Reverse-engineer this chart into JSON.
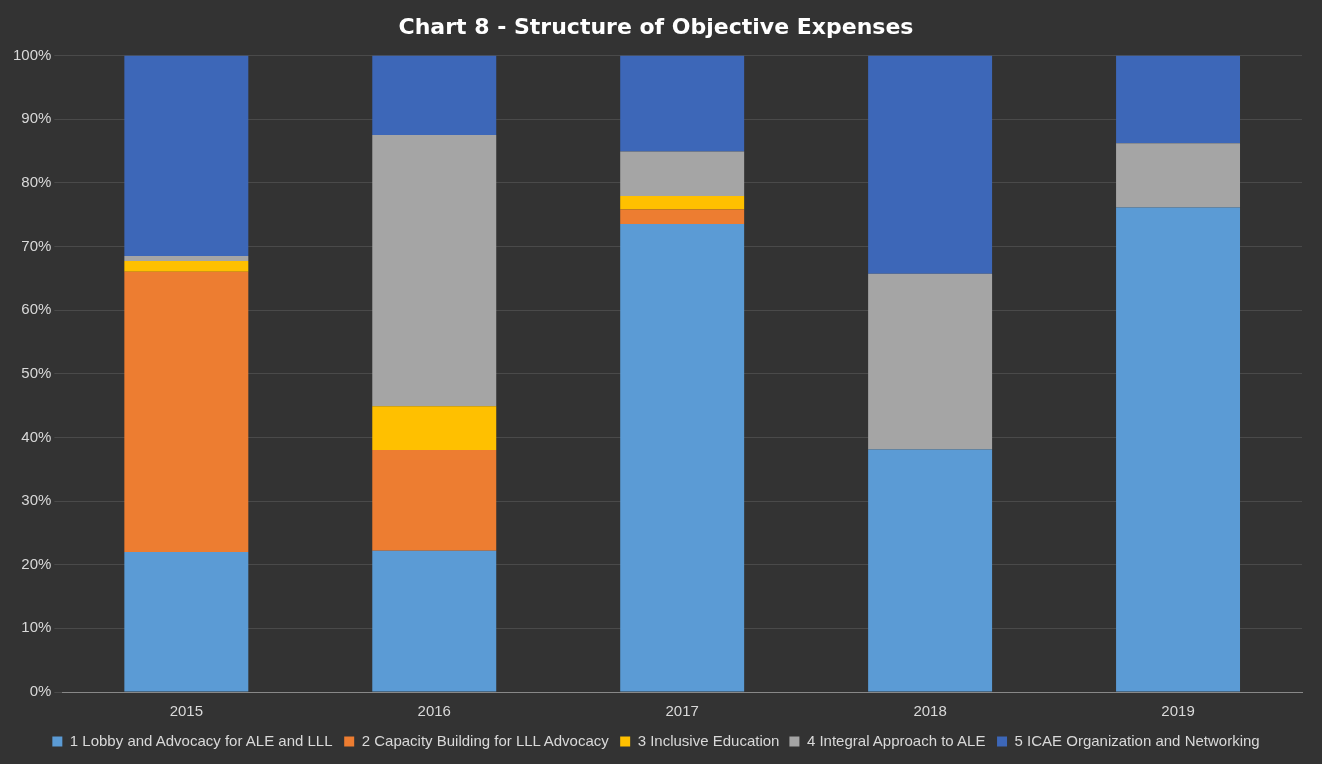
{
  "chart_data": {
    "type": "bar",
    "stacked": true,
    "title": "Chart 8 - Structure of Objective Expenses",
    "categories": [
      "2015",
      "2016",
      "2017",
      "2018",
      "2019"
    ],
    "series": [
      {
        "name": "1 Lobby and Advocacy for ALE and LLL",
        "color": "#5b9bd5",
        "values": [
          22,
          22.2,
          73.5,
          38.1,
          76.1
        ]
      },
      {
        "name": "2 Capacity Building for LLL Advocacy",
        "color": "#ed7d31",
        "values": [
          44,
          15.8,
          2.3,
          0,
          0
        ]
      },
      {
        "name": "3 Inclusive Education",
        "color": "#ffc000",
        "values": [
          1.7,
          6.9,
          2.1,
          0,
          0
        ]
      },
      {
        "name": "4 Integral Approach to ALE",
        "color": "#a5a5a5",
        "values": [
          0.8,
          42.6,
          7,
          27.6,
          10.1
        ]
      },
      {
        "name": "5 ICAE Organization and Networking",
        "color": "#3d67b8",
        "values": [
          31.5,
          12.5,
          15.1,
          34.3,
          13.8
        ]
      }
    ],
    "ylim": [
      0,
      100
    ],
    "yticks": [
      {
        "value": 0,
        "label": "0%"
      },
      {
        "value": 10,
        "label": "10%"
      },
      {
        "value": 20,
        "label": "20%"
      },
      {
        "value": 30,
        "label": "30%"
      },
      {
        "value": 40,
        "label": "40%"
      },
      {
        "value": 50,
        "label": "50%"
      },
      {
        "value": 60,
        "label": "60%"
      },
      {
        "value": 70,
        "label": "70%"
      },
      {
        "value": 80,
        "label": "80%"
      },
      {
        "value": 90,
        "label": "90%"
      },
      {
        "value": 100,
        "label": "100%"
      }
    ],
    "grid": "y",
    "legend": "bottom"
  }
}
